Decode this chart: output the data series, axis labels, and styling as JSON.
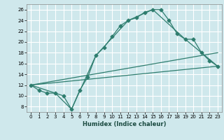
{
  "xlabel": "Humidex (Indice chaleur)",
  "bg_color": "#cfe8ec",
  "grid_color": "#ffffff",
  "line_color": "#2e7d6e",
  "xlim": [
    -0.5,
    23.5
  ],
  "ylim": [
    7,
    27
  ],
  "yticks": [
    8,
    10,
    12,
    14,
    16,
    18,
    20,
    22,
    24,
    26
  ],
  "xticks": [
    0,
    1,
    2,
    3,
    4,
    5,
    6,
    7,
    8,
    9,
    10,
    11,
    12,
    13,
    14,
    15,
    16,
    17,
    18,
    19,
    20,
    21,
    22,
    23
  ],
  "line1_x": [
    0,
    1,
    2,
    3,
    4,
    5,
    6,
    7,
    8,
    9,
    10,
    11,
    12,
    13,
    14,
    15,
    16,
    17,
    18,
    19,
    20,
    21,
    22,
    23
  ],
  "line1_y": [
    12,
    11,
    10.5,
    10.5,
    10,
    7.5,
    11,
    13.5,
    17.5,
    19,
    21,
    23,
    24,
    24.5,
    25.5,
    26,
    26,
    24,
    21.5,
    20.5,
    20.5,
    18,
    16.5,
    15.5
  ],
  "line2_x": [
    0,
    3,
    5,
    8,
    12,
    15,
    19,
    21,
    23
  ],
  "line2_y": [
    12,
    10.5,
    7.5,
    17.5,
    24,
    26,
    20.5,
    18,
    15.5
  ],
  "line3_x": [
    0,
    23
  ],
  "line3_y": [
    12,
    18
  ],
  "line4_x": [
    0,
    23
  ],
  "line4_y": [
    12,
    15.5
  ]
}
